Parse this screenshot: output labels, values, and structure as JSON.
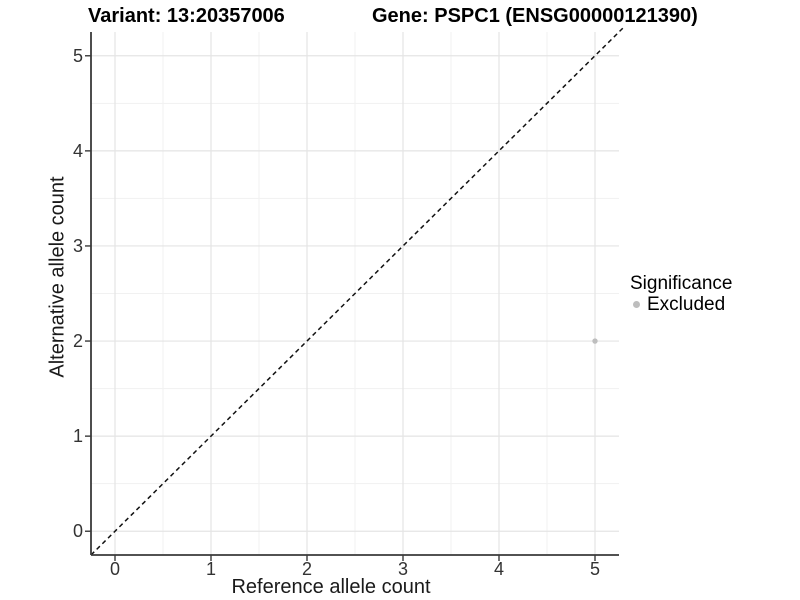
{
  "chart_data": {
    "type": "scatter",
    "titles": {
      "variant": "Variant: 13:20357006",
      "gene": "Gene: PSPC1 (ENSG00000121390)"
    },
    "xlabel": "Reference allele count",
    "ylabel": "Alternative allele count",
    "xlim": [
      -0.25,
      5.25
    ],
    "ylim": [
      -0.25,
      5.25
    ],
    "xticks": [
      0,
      1,
      2,
      3,
      4,
      5
    ],
    "yticks": [
      0,
      1,
      2,
      3,
      4,
      5
    ],
    "grid": "major and minor (0.5 step), light grey on white panel",
    "legend_position": "right",
    "series": [
      {
        "name": "Excluded",
        "color": "#bebebe",
        "point_radius": 2.7,
        "points": [
          {
            "x": 5,
            "y": 2
          }
        ]
      }
    ],
    "reference_line": {
      "type": "abline",
      "slope": 1,
      "intercept": 0,
      "linetype": "dashed",
      "color": "#111111"
    },
    "legend": {
      "title": "Significance",
      "items": [
        {
          "label": "Excluded",
          "color": "#bebebe"
        }
      ]
    },
    "colors": {
      "background": "#ffffff",
      "grid_major": "#e4e4e4",
      "grid_minor": "#f1f1f1",
      "axis_line": "#3a3a3a",
      "tick_mark": "#3a3a3a",
      "tick_text": "#333333",
      "title_text": "#000000"
    }
  }
}
